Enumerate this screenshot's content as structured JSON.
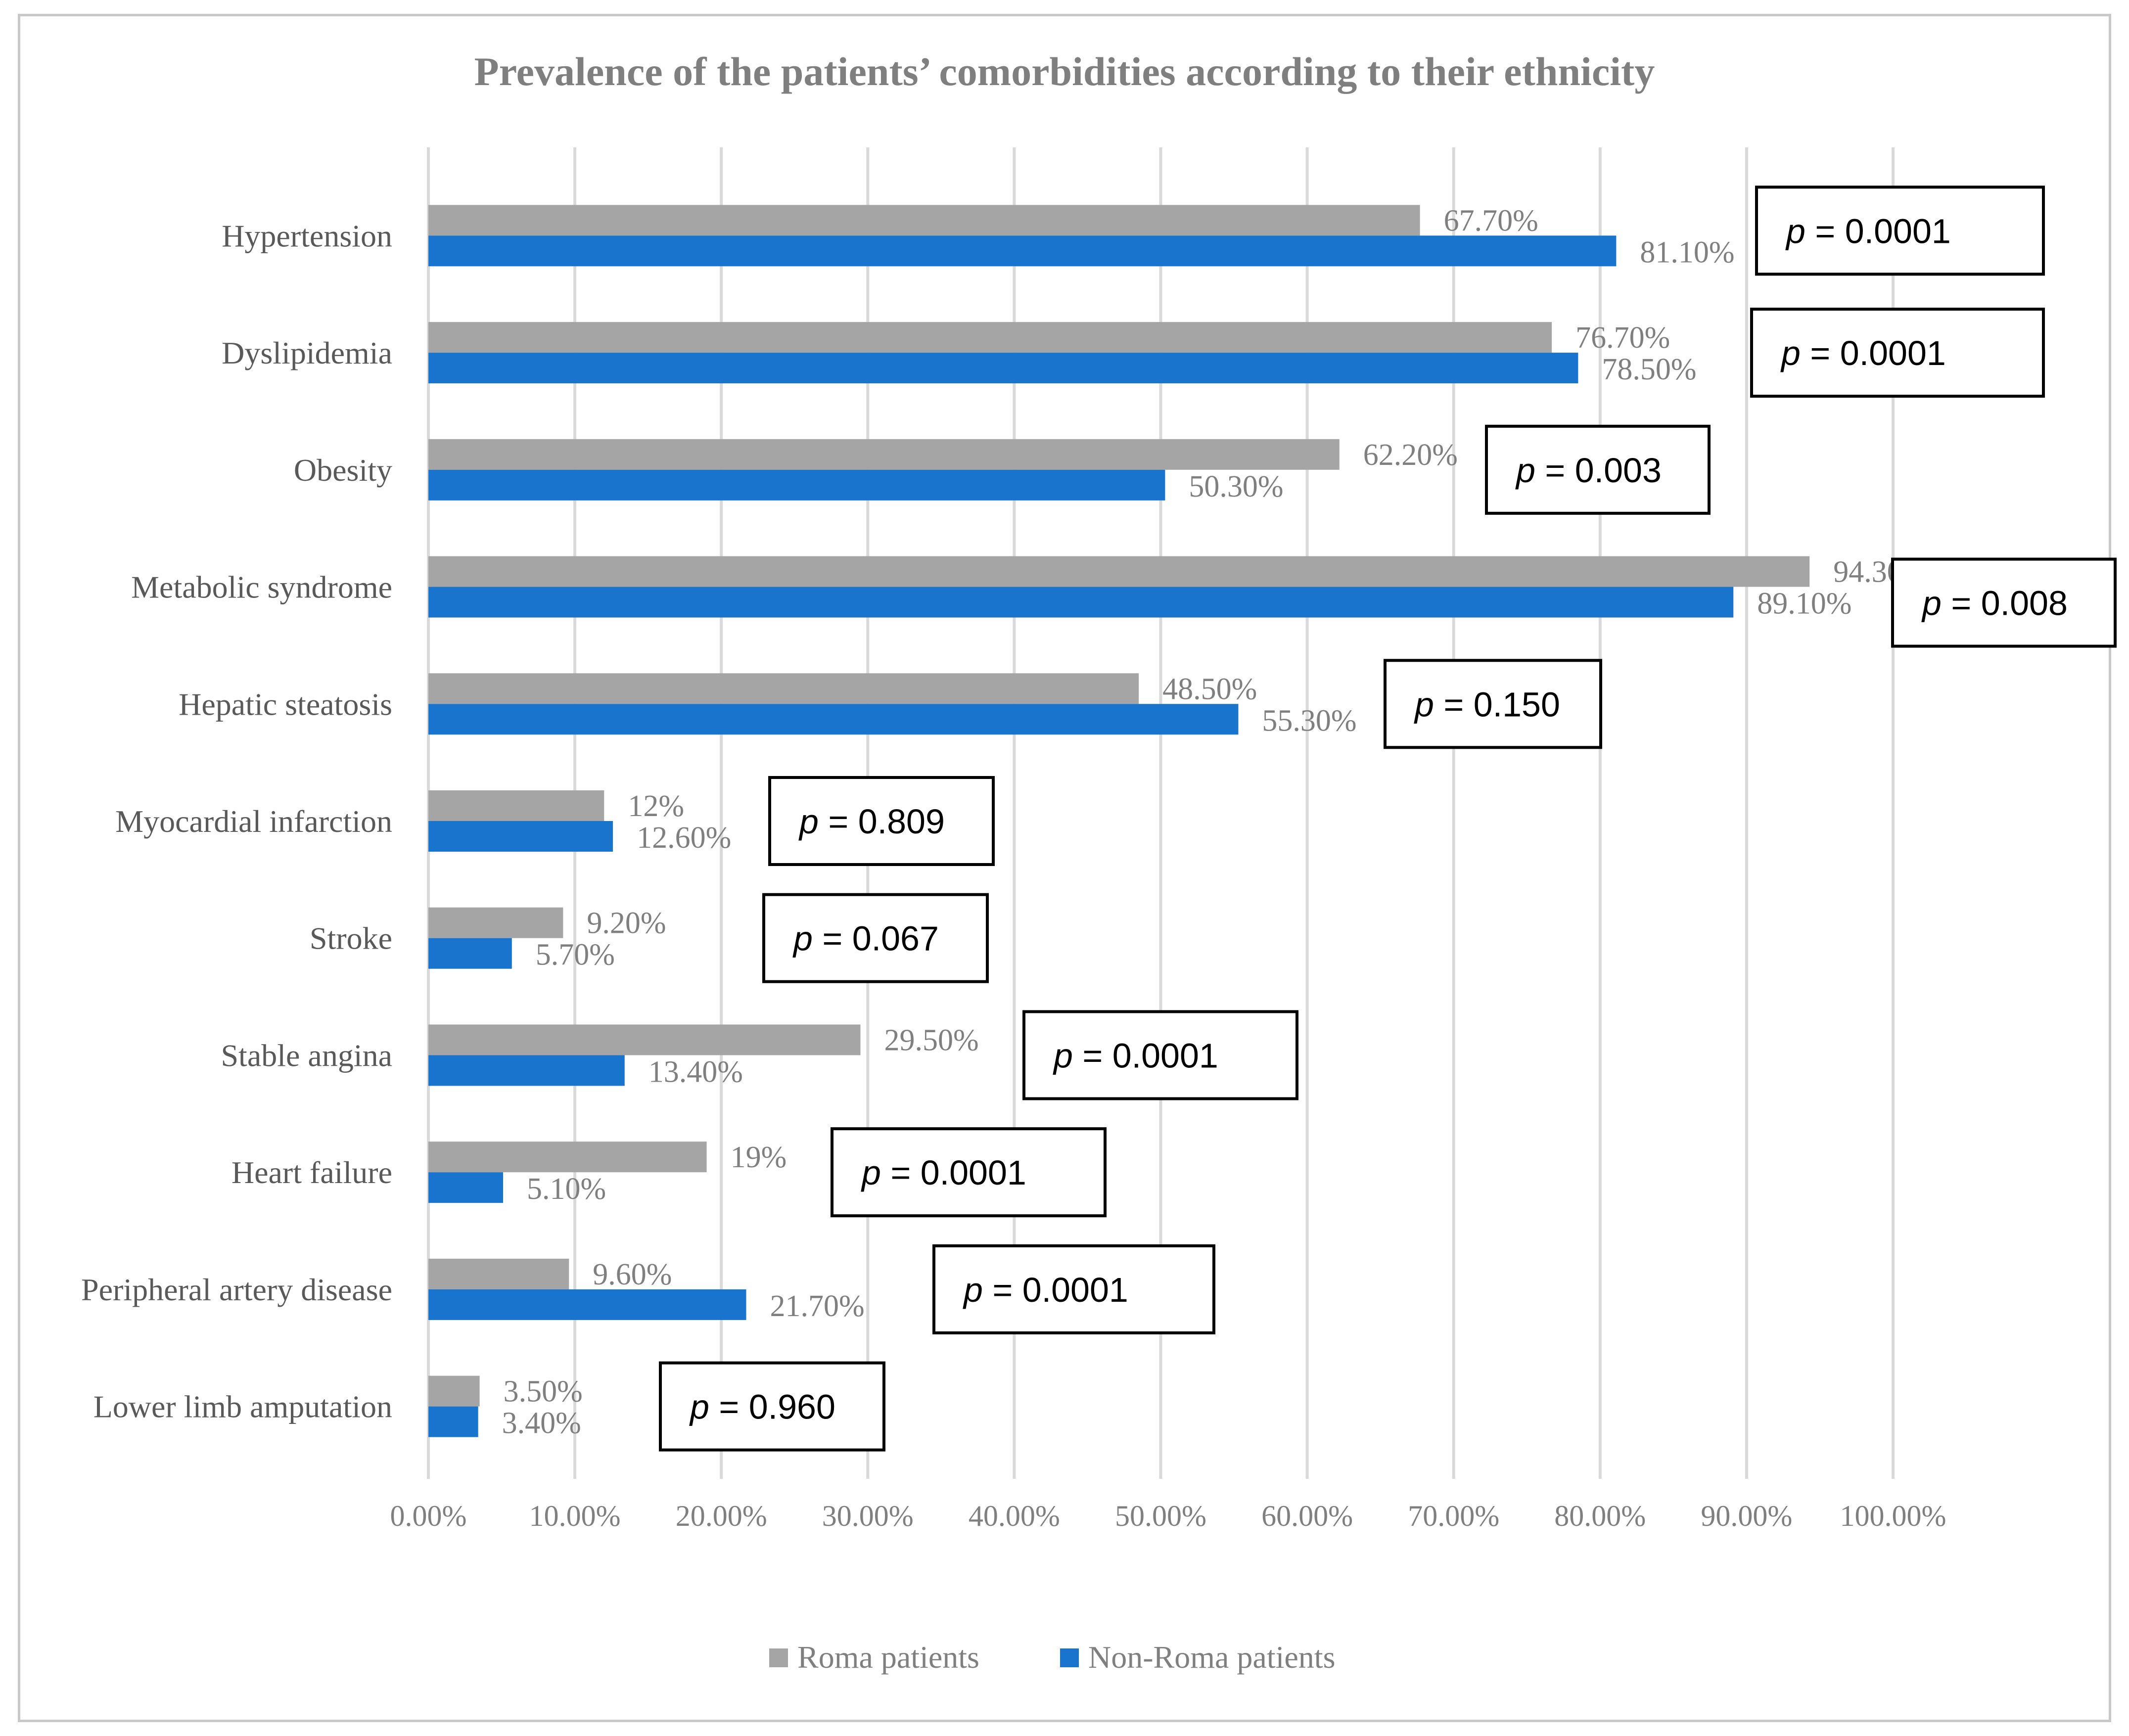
{
  "chart_data": {
    "type": "bar",
    "orientation": "horizontal",
    "title": "Prevalence of the patients’ comorbidities according to their ethnicity",
    "categories": [
      "Hypertension",
      "Dyslipidemia",
      "Obesity",
      "Metabolic syndrome",
      "Hepatic steatosis",
      "Myocardial infarction",
      "Stroke",
      "Stable angina",
      "Heart failure",
      "Peripheral artery disease",
      "Lower limb amputation"
    ],
    "series": [
      {
        "name": "Roma patients",
        "color": "#a5a5a5",
        "values": [
          67.7,
          76.7,
          62.2,
          94.3,
          48.5,
          12,
          9.2,
          29.5,
          19,
          9.6,
          3.5
        ],
        "labels": [
          "67.70%",
          "76.70%",
          "62.20%",
          "94.30%",
          "48.50%",
          "12%",
          "9.20%",
          "29.50%",
          "19%",
          "9.60%",
          "3.50%"
        ]
      },
      {
        "name": "Non-Roma patients",
        "color": "#1874cd",
        "values": [
          81.1,
          78.5,
          50.3,
          89.1,
          55.3,
          12.6,
          5.7,
          13.4,
          5.1,
          21.7,
          3.4
        ],
        "labels": [
          "81.10%",
          "78.50%",
          "50.30%",
          "89.10%",
          "55.30%",
          "12.60%",
          "5.70%",
          "13.40%",
          "5.10%",
          "21.70%",
          "3.40%"
        ]
      }
    ],
    "p_value_prefix": "p",
    "p_values": [
      "= 0.0001",
      "= 0.0001",
      "= 0.003",
      "= 0.008",
      "= 0.150",
      "= 0.809",
      "= 0.067",
      "= 0.0001",
      "= 0.0001",
      "= 0.0001",
      "= 0.960"
    ],
    "x_ticks": [
      "0.00%",
      "10.00%",
      "20.00%",
      "30.00%",
      "40.00%",
      "50.00%",
      "60.00%",
      "70.00%",
      "80.00%",
      "90.00%",
      "100.00%"
    ],
    "xlim": [
      0,
      100
    ],
    "grid": true,
    "legend_position": "bottom",
    "xlabel": "",
    "ylabel": ""
  }
}
